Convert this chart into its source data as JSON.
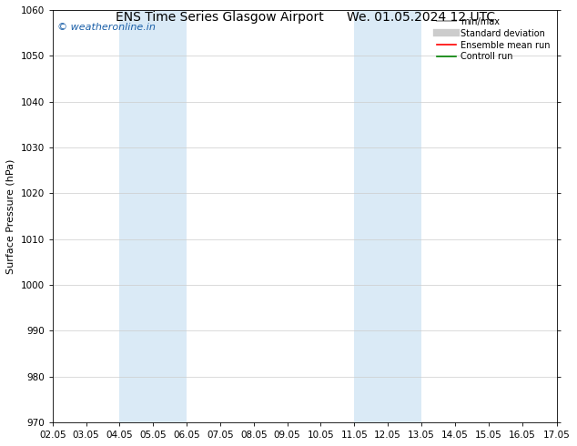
{
  "title_left": "ENS Time Series Glasgow Airport",
  "title_right": "We. 01.05.2024 12 UTC",
  "ylabel": "Surface Pressure (hPa)",
  "ylim": [
    970,
    1060
  ],
  "yticks": [
    970,
    980,
    990,
    1000,
    1010,
    1020,
    1030,
    1040,
    1050,
    1060
  ],
  "xlim": [
    2.0,
    17.05
  ],
  "xtick_labels": [
    "02.05",
    "03.05",
    "04.05",
    "05.05",
    "06.05",
    "07.05",
    "08.05",
    "09.05",
    "10.05",
    "11.05",
    "12.05",
    "13.05",
    "14.05",
    "15.05",
    "16.05",
    "17.05"
  ],
  "xtick_positions": [
    2.0,
    3.0,
    4.0,
    5.0,
    6.0,
    7.0,
    8.0,
    9.0,
    10.0,
    11.0,
    12.0,
    13.0,
    14.0,
    15.0,
    16.0,
    17.05
  ],
  "shaded_regions": [
    {
      "xmin": 4.0,
      "xmax": 6.0,
      "color": "#daeaf6"
    },
    {
      "xmin": 11.0,
      "xmax": 13.0,
      "color": "#daeaf6"
    }
  ],
  "watermark": "© weatheronline.in",
  "watermark_color": "#1a5fa8",
  "background_color": "#ffffff",
  "legend_items": [
    {
      "label": "min/max",
      "color": "#aaaaaa",
      "linestyle": "-",
      "linewidth": 1.5
    },
    {
      "label": "Standard deviation",
      "color": "#cccccc",
      "linestyle": "-",
      "linewidth": 6
    },
    {
      "label": "Ensemble mean run",
      "color": "#ff0000",
      "linestyle": "-",
      "linewidth": 1.2
    },
    {
      "label": "Controll run",
      "color": "#008000",
      "linestyle": "-",
      "linewidth": 1.2
    }
  ],
  "grid_color": "#cccccc",
  "title_fontsize": 10,
  "tick_fontsize": 7.5,
  "ylabel_fontsize": 8,
  "watermark_fontsize": 8,
  "legend_fontsize": 7
}
